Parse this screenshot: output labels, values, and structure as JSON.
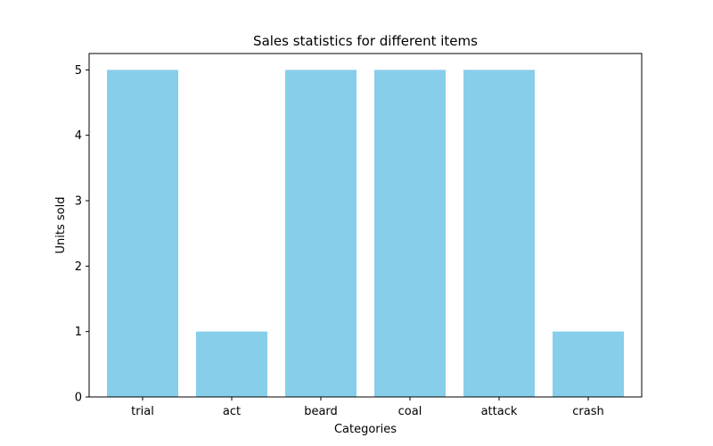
{
  "chart_data": {
    "type": "bar",
    "title": "Sales statistics for different items",
    "xlabel": "Categories",
    "ylabel": "Units sold",
    "categories": [
      "trial",
      "act",
      "beard",
      "coal",
      "attack",
      "crash"
    ],
    "values": [
      5,
      1,
      5,
      5,
      5,
      1
    ],
    "ylim": [
      0,
      5.25
    ],
    "yticks": [
      0,
      1,
      2,
      3,
      4,
      5
    ],
    "bar_color": "#87CEEB",
    "grid": false,
    "legend": "none"
  }
}
